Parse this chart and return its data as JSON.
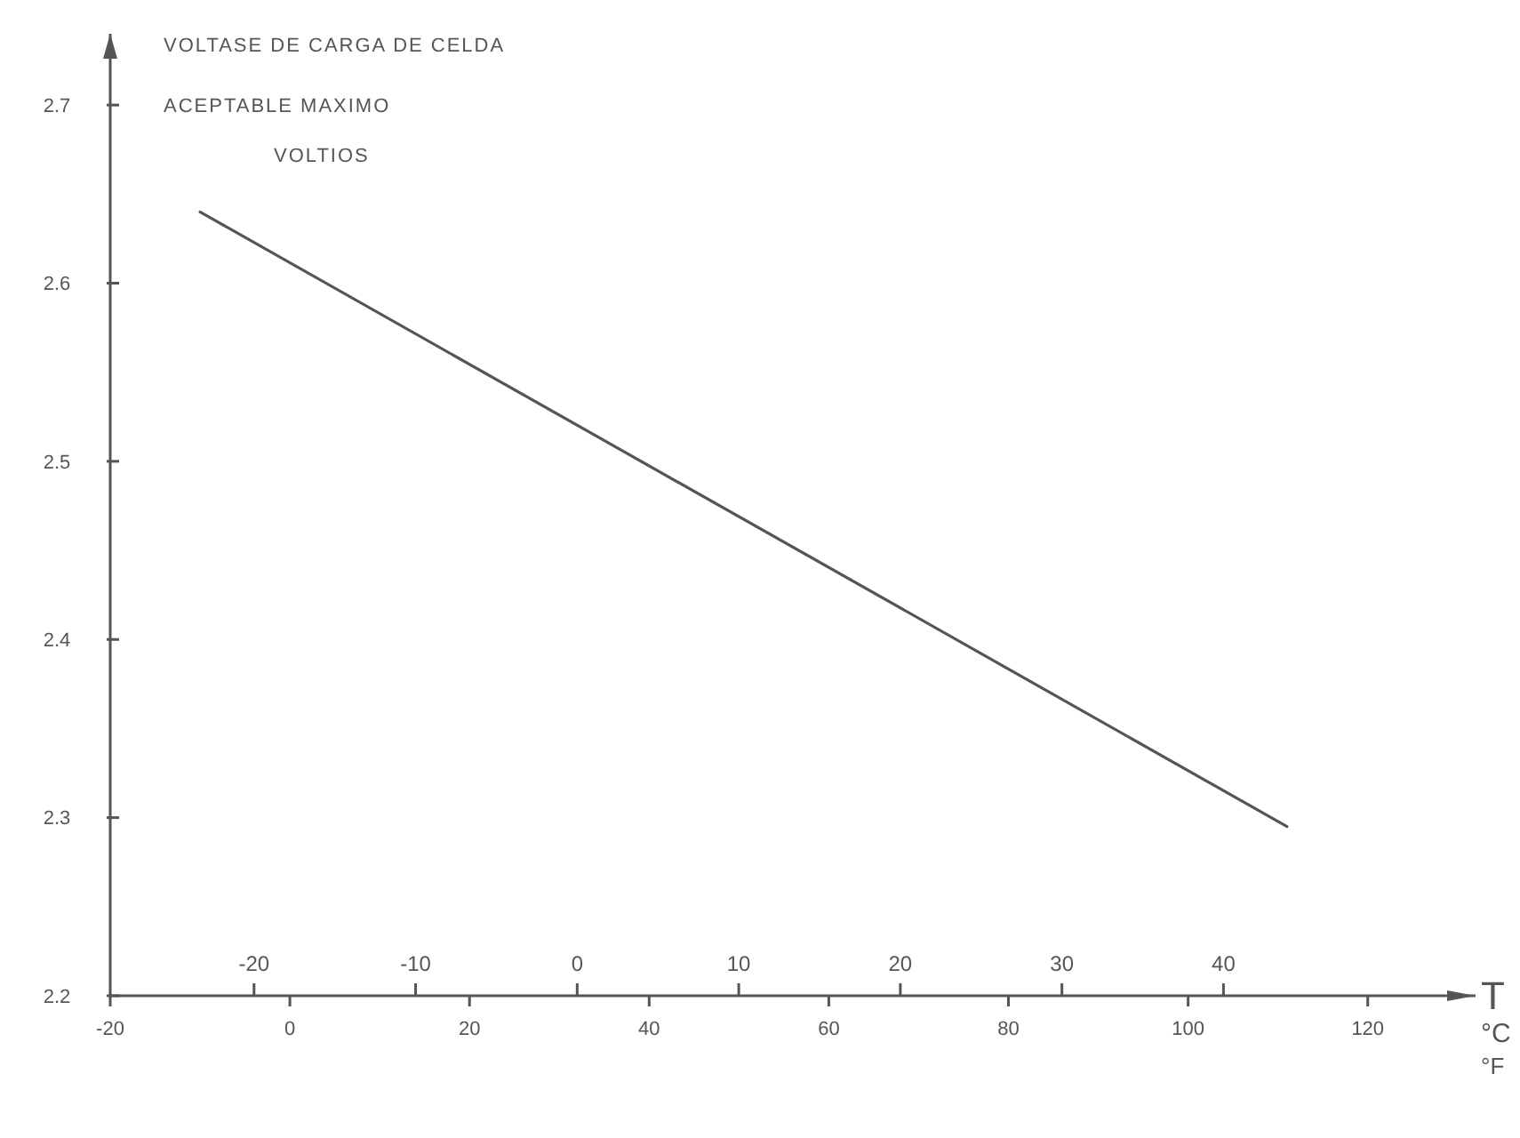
{
  "chart_data": {
    "type": "line",
    "title": "VOLTASE DE CARGA DE CELDA",
    "subtitle": "ACEPTABLE MAXIMO",
    "ylabel": "VOLTIOS",
    "xlabel": "°F",
    "x2label": "°C",
    "annotations": [
      "T"
    ],
    "xlim": [
      -20,
      132
    ],
    "xticks": [
      -20,
      0,
      20,
      40,
      60,
      80,
      100,
      120
    ],
    "x2lim": [
      -28.9,
      55.6
    ],
    "x2ticks": [
      -20,
      -10,
      0,
      10,
      20,
      30,
      40
    ],
    "ylim": [
      2.2,
      2.74
    ],
    "yticks": [
      2.2,
      2.3,
      2.4,
      2.5,
      2.6,
      2.7
    ],
    "grid": false,
    "marker": "none",
    "line_style": "solid",
    "series": [
      {
        "color": "#555555",
        "x": [
          -10,
          111
        ],
        "values": [
          2.64,
          2.295
        ]
      }
    ]
  }
}
